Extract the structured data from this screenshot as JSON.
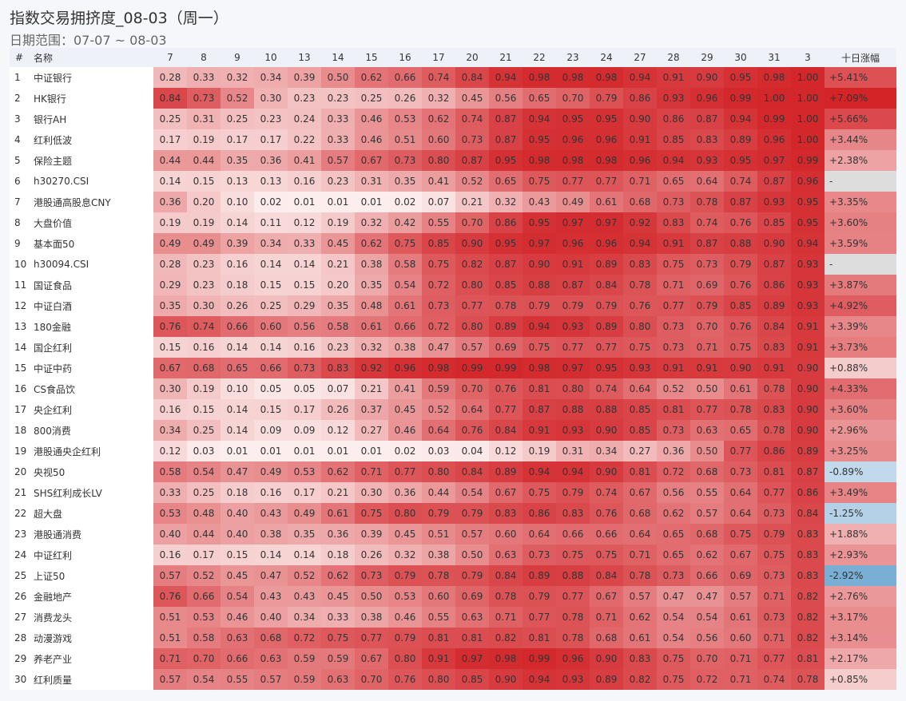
{
  "header": {
    "title": "指数交易拥挤度_08-03（周一）",
    "subtitle": "日期范围：07-07 ~ 08-03"
  },
  "table": {
    "columns": [
      "#",
      "名称",
      "7",
      "8",
      "9",
      "10",
      "13",
      "14",
      "15",
      "16",
      "17",
      "20",
      "21",
      "22",
      "23",
      "24",
      "27",
      "28",
      "29",
      "30",
      "31",
      "3",
      "十日涨幅"
    ],
    "rows": [
      [
        "1",
        "中证银行",
        "0.28",
        "0.33",
        "0.32",
        "0.34",
        "0.39",
        "0.50",
        "0.62",
        "0.66",
        "0.74",
        "0.84",
        "0.94",
        "0.98",
        "0.98",
        "0.98",
        "0.94",
        "0.91",
        "0.90",
        "0.95",
        "0.98",
        "1.00",
        "+5.41%"
      ],
      [
        "2",
        "HK银行",
        "0.84",
        "0.73",
        "0.52",
        "0.30",
        "0.23",
        "0.23",
        "0.25",
        "0.26",
        "0.32",
        "0.45",
        "0.56",
        "0.65",
        "0.70",
        "0.79",
        "0.86",
        "0.93",
        "0.96",
        "0.99",
        "1.00",
        "1.00",
        "+7.09%"
      ],
      [
        "3",
        "银行AH",
        "0.25",
        "0.31",
        "0.25",
        "0.23",
        "0.24",
        "0.33",
        "0.46",
        "0.53",
        "0.62",
        "0.74",
        "0.87",
        "0.94",
        "0.95",
        "0.95",
        "0.90",
        "0.86",
        "0.87",
        "0.94",
        "0.99",
        "1.00",
        "+5.66%"
      ],
      [
        "4",
        "红利低波",
        "0.17",
        "0.19",
        "0.17",
        "0.17",
        "0.22",
        "0.33",
        "0.46",
        "0.51",
        "0.60",
        "0.73",
        "0.87",
        "0.95",
        "0.96",
        "0.96",
        "0.91",
        "0.85",
        "0.83",
        "0.89",
        "0.96",
        "1.00",
        "+3.44%"
      ],
      [
        "5",
        "保险主题",
        "0.44",
        "0.44",
        "0.35",
        "0.36",
        "0.41",
        "0.57",
        "0.67",
        "0.73",
        "0.80",
        "0.87",
        "0.95",
        "0.98",
        "0.98",
        "0.98",
        "0.96",
        "0.94",
        "0.93",
        "0.95",
        "0.97",
        "0.99",
        "+2.38%"
      ],
      [
        "6",
        "h30270.CSI",
        "0.14",
        "0.15",
        "0.13",
        "0.13",
        "0.16",
        "0.23",
        "0.31",
        "0.35",
        "0.41",
        "0.52",
        "0.65",
        "0.75",
        "0.77",
        "0.77",
        "0.71",
        "0.65",
        "0.64",
        "0.74",
        "0.87",
        "0.96",
        "-"
      ],
      [
        "7",
        "港股通高股息CNY",
        "0.36",
        "0.20",
        "0.10",
        "0.02",
        "0.01",
        "0.01",
        "0.01",
        "0.02",
        "0.07",
        "0.21",
        "0.32",
        "0.43",
        "0.49",
        "0.61",
        "0.68",
        "0.73",
        "0.78",
        "0.87",
        "0.93",
        "0.95",
        "+3.35%"
      ],
      [
        "8",
        "大盘价值",
        "0.19",
        "0.19",
        "0.14",
        "0.11",
        "0.12",
        "0.19",
        "0.32",
        "0.42",
        "0.55",
        "0.70",
        "0.86",
        "0.95",
        "0.97",
        "0.97",
        "0.92",
        "0.83",
        "0.74",
        "0.76",
        "0.85",
        "0.95",
        "+3.60%"
      ],
      [
        "9",
        "基本面50",
        "0.49",
        "0.49",
        "0.39",
        "0.34",
        "0.33",
        "0.45",
        "0.62",
        "0.75",
        "0.85",
        "0.90",
        "0.95",
        "0.97",
        "0.96",
        "0.96",
        "0.94",
        "0.91",
        "0.87",
        "0.88",
        "0.90",
        "0.94",
        "+3.59%"
      ],
      [
        "10",
        "h30094.CSI",
        "0.28",
        "0.23",
        "0.16",
        "0.14",
        "0.14",
        "0.21",
        "0.38",
        "0.58",
        "0.75",
        "0.82",
        "0.87",
        "0.90",
        "0.91",
        "0.89",
        "0.83",
        "0.75",
        "0.73",
        "0.79",
        "0.87",
        "0.93",
        "-"
      ],
      [
        "11",
        "国证食品",
        "0.29",
        "0.23",
        "0.18",
        "0.15",
        "0.15",
        "0.20",
        "0.35",
        "0.54",
        "0.72",
        "0.80",
        "0.85",
        "0.88",
        "0.87",
        "0.84",
        "0.78",
        "0.71",
        "0.69",
        "0.76",
        "0.86",
        "0.93",
        "+3.87%"
      ],
      [
        "12",
        "中证白酒",
        "0.35",
        "0.30",
        "0.26",
        "0.25",
        "0.29",
        "0.35",
        "0.48",
        "0.61",
        "0.73",
        "0.77",
        "0.78",
        "0.79",
        "0.79",
        "0.79",
        "0.76",
        "0.77",
        "0.79",
        "0.85",
        "0.89",
        "0.93",
        "+4.92%"
      ],
      [
        "13",
        "180金融",
        "0.76",
        "0.74",
        "0.66",
        "0.60",
        "0.56",
        "0.58",
        "0.61",
        "0.66",
        "0.72",
        "0.80",
        "0.89",
        "0.94",
        "0.93",
        "0.89",
        "0.80",
        "0.73",
        "0.70",
        "0.76",
        "0.84",
        "0.91",
        "+3.39%"
      ],
      [
        "14",
        "国企红利",
        "0.15",
        "0.16",
        "0.14",
        "0.14",
        "0.16",
        "0.23",
        "0.32",
        "0.38",
        "0.47",
        "0.57",
        "0.69",
        "0.75",
        "0.77",
        "0.77",
        "0.75",
        "0.73",
        "0.71",
        "0.75",
        "0.83",
        "0.91",
        "+3.73%"
      ],
      [
        "15",
        "中证中药",
        "0.67",
        "0.68",
        "0.65",
        "0.66",
        "0.73",
        "0.83",
        "0.92",
        "0.96",
        "0.98",
        "0.99",
        "0.99",
        "0.98",
        "0.97",
        "0.95",
        "0.93",
        "0.91",
        "0.91",
        "0.90",
        "0.91",
        "0.90",
        "+0.88%"
      ],
      [
        "16",
        "CS食品饮",
        "0.30",
        "0.19",
        "0.10",
        "0.05",
        "0.05",
        "0.07",
        "0.21",
        "0.41",
        "0.59",
        "0.70",
        "0.76",
        "0.81",
        "0.80",
        "0.74",
        "0.64",
        "0.52",
        "0.50",
        "0.61",
        "0.78",
        "0.90",
        "+4.33%"
      ],
      [
        "17",
        "央企红利",
        "0.16",
        "0.15",
        "0.14",
        "0.15",
        "0.17",
        "0.26",
        "0.37",
        "0.45",
        "0.52",
        "0.64",
        "0.77",
        "0.87",
        "0.88",
        "0.88",
        "0.85",
        "0.81",
        "0.77",
        "0.78",
        "0.83",
        "0.90",
        "+3.60%"
      ],
      [
        "18",
        "800消费",
        "0.34",
        "0.25",
        "0.14",
        "0.09",
        "0.09",
        "0.12",
        "0.27",
        "0.46",
        "0.64",
        "0.76",
        "0.84",
        "0.91",
        "0.93",
        "0.90",
        "0.85",
        "0.73",
        "0.63",
        "0.65",
        "0.78",
        "0.90",
        "+2.96%"
      ],
      [
        "19",
        "港股通央企红利",
        "0.12",
        "0.03",
        "0.01",
        "0.01",
        "0.01",
        "0.01",
        "0.01",
        "0.02",
        "0.03",
        "0.04",
        "0.12",
        "0.19",
        "0.31",
        "0.34",
        "0.27",
        "0.36",
        "0.50",
        "0.77",
        "0.86",
        "0.89",
        "+3.25%"
      ],
      [
        "20",
        "央视50",
        "0.58",
        "0.54",
        "0.47",
        "0.49",
        "0.53",
        "0.62",
        "0.71",
        "0.77",
        "0.80",
        "0.84",
        "0.89",
        "0.94",
        "0.94",
        "0.90",
        "0.81",
        "0.72",
        "0.68",
        "0.73",
        "0.81",
        "0.87",
        "-0.89%"
      ],
      [
        "21",
        "SHS红利成长LV",
        "0.33",
        "0.25",
        "0.18",
        "0.16",
        "0.17",
        "0.21",
        "0.30",
        "0.36",
        "0.44",
        "0.54",
        "0.67",
        "0.75",
        "0.79",
        "0.74",
        "0.67",
        "0.56",
        "0.55",
        "0.64",
        "0.77",
        "0.86",
        "+3.49%"
      ],
      [
        "22",
        "超大盘",
        "0.53",
        "0.48",
        "0.40",
        "0.43",
        "0.49",
        "0.61",
        "0.75",
        "0.80",
        "0.79",
        "0.79",
        "0.83",
        "0.86",
        "0.83",
        "0.76",
        "0.68",
        "0.62",
        "0.57",
        "0.64",
        "0.73",
        "0.84",
        "-1.25%"
      ],
      [
        "23",
        "港股通消费",
        "0.40",
        "0.44",
        "0.40",
        "0.38",
        "0.35",
        "0.36",
        "0.39",
        "0.45",
        "0.51",
        "0.57",
        "0.60",
        "0.64",
        "0.66",
        "0.66",
        "0.64",
        "0.65",
        "0.68",
        "0.75",
        "0.79",
        "0.83",
        "+1.88%"
      ],
      [
        "24",
        "中证红利",
        "0.16",
        "0.17",
        "0.15",
        "0.14",
        "0.14",
        "0.18",
        "0.26",
        "0.32",
        "0.38",
        "0.50",
        "0.63",
        "0.73",
        "0.75",
        "0.75",
        "0.71",
        "0.65",
        "0.62",
        "0.67",
        "0.75",
        "0.83",
        "+2.93%"
      ],
      [
        "25",
        "上证50",
        "0.57",
        "0.52",
        "0.45",
        "0.47",
        "0.52",
        "0.62",
        "0.73",
        "0.79",
        "0.78",
        "0.79",
        "0.84",
        "0.89",
        "0.88",
        "0.84",
        "0.78",
        "0.73",
        "0.66",
        "0.69",
        "0.73",
        "0.83",
        "-2.92%"
      ],
      [
        "26",
        "金融地产",
        "0.76",
        "0.66",
        "0.54",
        "0.43",
        "0.43",
        "0.45",
        "0.50",
        "0.53",
        "0.60",
        "0.69",
        "0.78",
        "0.79",
        "0.77",
        "0.67",
        "0.57",
        "0.47",
        "0.47",
        "0.57",
        "0.71",
        "0.82",
        "+2.76%"
      ],
      [
        "27",
        "消费龙头",
        "0.51",
        "0.53",
        "0.46",
        "0.40",
        "0.34",
        "0.33",
        "0.38",
        "0.46",
        "0.55",
        "0.63",
        "0.71",
        "0.77",
        "0.78",
        "0.71",
        "0.62",
        "0.54",
        "0.54",
        "0.61",
        "0.73",
        "0.82",
        "+3.17%"
      ],
      [
        "28",
        "动漫游戏",
        "0.51",
        "0.58",
        "0.63",
        "0.68",
        "0.72",
        "0.75",
        "0.77",
        "0.79",
        "0.81",
        "0.81",
        "0.82",
        "0.81",
        "0.78",
        "0.68",
        "0.61",
        "0.54",
        "0.56",
        "0.60",
        "0.71",
        "0.82",
        "+3.14%"
      ],
      [
        "29",
        "养老产业",
        "0.71",
        "0.70",
        "0.66",
        "0.63",
        "0.59",
        "0.59",
        "0.67",
        "0.80",
        "0.91",
        "0.97",
        "0.98",
        "0.99",
        "0.96",
        "0.90",
        "0.83",
        "0.75",
        "0.70",
        "0.71",
        "0.77",
        "0.81",
        "+2.17%"
      ],
      [
        "30",
        "红利质量",
        "0.57",
        "0.54",
        "0.55",
        "0.57",
        "0.59",
        "0.63",
        "0.70",
        "0.76",
        "0.80",
        "0.85",
        "0.90",
        "0.94",
        "0.93",
        "0.89",
        "0.82",
        "0.75",
        "0.72",
        "0.71",
        "0.74",
        "0.78",
        "+0.85%"
      ]
    ]
  }
}
